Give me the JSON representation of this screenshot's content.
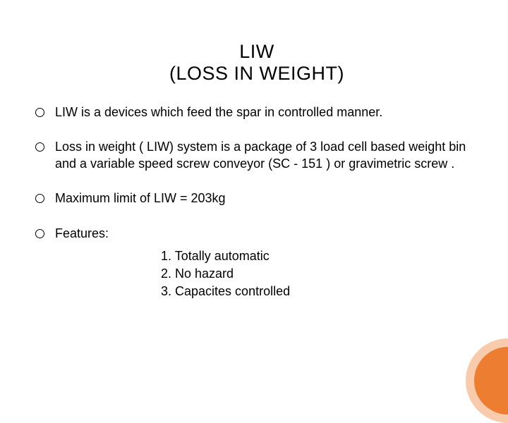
{
  "title": {
    "line1": "LIW",
    "line2": "(LOSS IN WEIGHT)"
  },
  "bullets": [
    {
      "text": " LIW is a devices which feed the spar in controlled manner."
    },
    {
      "text": "Loss in weight ( LIW) system is a package of 3 load cell based weight bin and a variable speed screw conveyor (SC - 151 ) or gravimetric screw ."
    },
    {
      "text": " Maximum limit of LIW  =      203kg"
    },
    {
      "text": "Features:"
    }
  ],
  "features": [
    "1. Totally automatic",
    "2. No hazard",
    "3. Capacites controlled"
  ],
  "theme": {
    "background": "#ffffff",
    "text_color": "#000000",
    "accent_outer": "#f8cbad",
    "accent_inner": "#ed7d31",
    "title_fontsize": 27,
    "body_fontsize": 18
  }
}
